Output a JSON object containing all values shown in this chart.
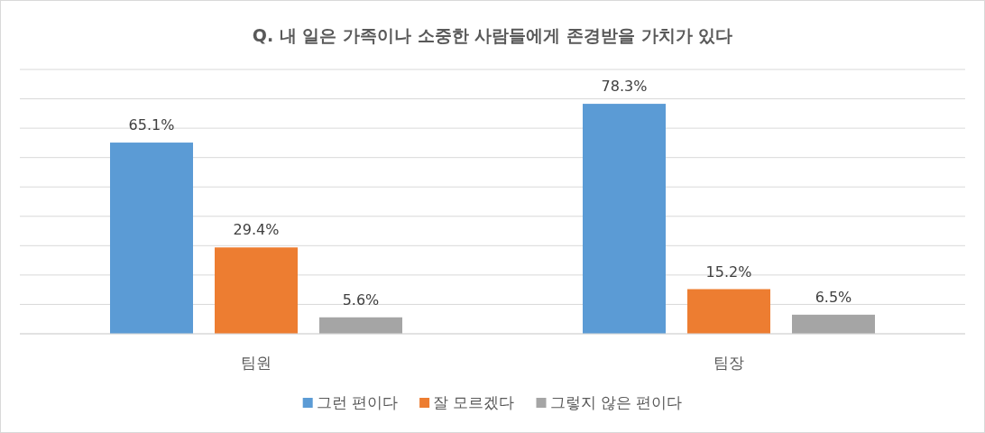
{
  "chart_data": {
    "type": "bar",
    "title": "Q. 내 일은 가족이나 소중한 사람들에게 존경받을 가치가 있다",
    "categories": [
      "팀원",
      "팀장"
    ],
    "series": [
      {
        "name": "그런 편이다",
        "color": "#5b9bd5",
        "values": [
          65.1,
          78.3
        ],
        "value_labels": [
          "65.1%",
          "78.3%"
        ]
      },
      {
        "name": "잘 모르겠다",
        "color": "#ed7d31",
        "values": [
          29.4,
          15.2
        ],
        "value_labels": [
          "29.4%",
          "15.2%"
        ]
      },
      {
        "name": "그렇지 않은 편이다",
        "color": "#a5a5a5",
        "values": [
          5.6,
          6.5
        ],
        "value_labels": [
          "5.6%",
          "6.5%"
        ]
      }
    ],
    "ylim": [
      0,
      90
    ],
    "yticks": [
      {
        "value": 0,
        "label": null
      },
      {
        "value": 10,
        "label": null
      },
      {
        "value": 20,
        "label": null
      },
      {
        "value": 30,
        "label": null
      },
      {
        "value": 40,
        "label": null
      },
      {
        "value": 50,
        "label": null
      },
      {
        "value": 60,
        "label": null
      },
      {
        "value": 70,
        "label": null
      },
      {
        "value": 80,
        "label": null
      },
      {
        "value": 90,
        "label": null
      }
    ],
    "grid": "y",
    "legend": "bottom",
    "tick_labels": "x"
  }
}
